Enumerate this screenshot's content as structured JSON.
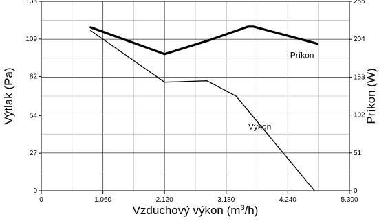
{
  "chart_data": {
    "type": "line",
    "xlabel_main": "Vzduchový výkon (m",
    "xlabel_sup": "3",
    "xlabel_tail": "/h)",
    "ylabel_left": "Výtlak (Pa)",
    "ylabel_right": "Príkon (W)",
    "xlim": [
      0,
      5300
    ],
    "ylim_left": [
      0,
      136
    ],
    "ylim_right": [
      0,
      255
    ],
    "x_ticks": [
      0,
      1060,
      2120,
      3180,
      4240,
      5300
    ],
    "x_tick_labels": [
      "0",
      "1.060",
      "2.120",
      "3.180",
      "4.240",
      "5.300"
    ],
    "y_left_ticks": [
      0,
      27,
      54,
      82,
      109,
      136
    ],
    "y_left_tick_labels": [
      "0",
      "27",
      "54",
      "82",
      "109",
      "136"
    ],
    "y_right_ticks": [
      0,
      51,
      102,
      153,
      204,
      255
    ],
    "y_right_tick_labels": [
      "0",
      "51",
      "102",
      "153",
      "204",
      "255"
    ],
    "grid": true,
    "series": [
      {
        "name": "Príkon",
        "axis": "right",
        "x": [
          850,
          2120,
          2900,
          3560,
          3650,
          4750
        ],
        "y": [
          220,
          184,
          203,
          221,
          221,
          198
        ]
      },
      {
        "name": "Výkon",
        "axis": "left",
        "x": [
          850,
          1400,
          2120,
          2850,
          3350,
          4700
        ],
        "y": [
          115,
          99,
          78,
          79,
          68,
          0
        ]
      }
    ]
  }
}
